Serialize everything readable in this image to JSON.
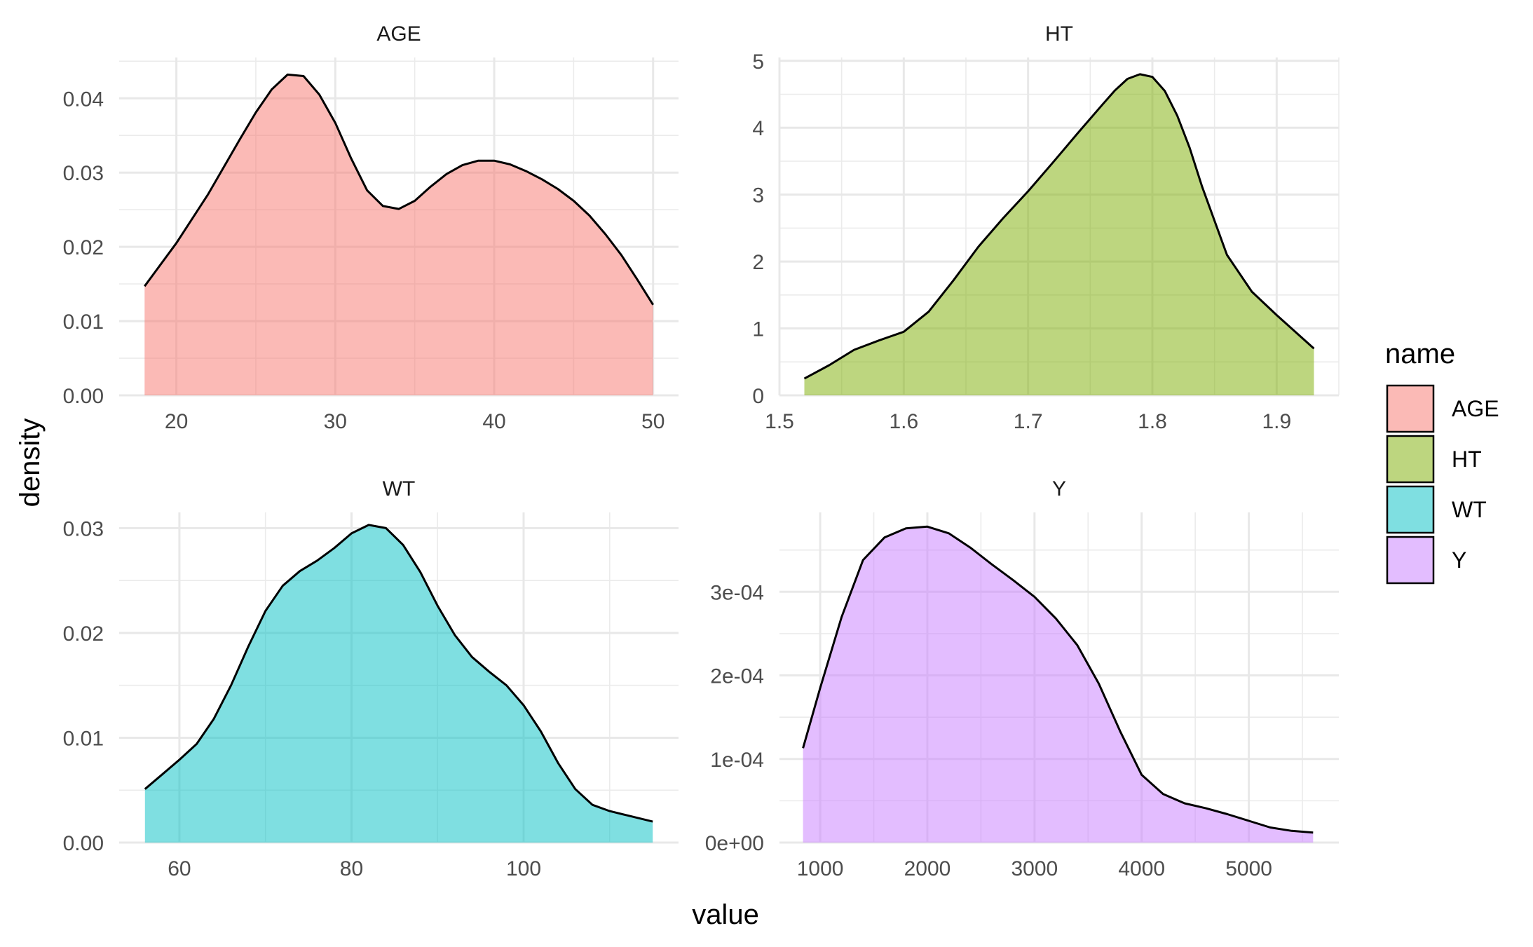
{
  "axes": {
    "xlabel": "value",
    "ylabel": "density"
  },
  "legend": {
    "title": "name",
    "position": "right",
    "entries": [
      {
        "label": "AGE",
        "color": "#F8766D"
      },
      {
        "label": "HT",
        "color": "#7CAE00"
      },
      {
        "label": "WT",
        "color": "#00BFC4"
      },
      {
        "label": "Y",
        "color": "#C77CFF"
      }
    ]
  },
  "chart_data": [
    {
      "type": "area",
      "title": "AGE",
      "color": "#F8766D",
      "xlim": [
        16.4,
        51.6
      ],
      "ylim": [
        0,
        0.0455
      ],
      "xticks": [
        20,
        30,
        40,
        50
      ],
      "xtick_labels": [
        "20",
        "30",
        "40",
        "50"
      ],
      "yticks": [
        0,
        0.01,
        0.02,
        0.03,
        0.04
      ],
      "ytick_labels": [
        "0.00",
        "0.01",
        "0.02",
        "0.03",
        "0.04"
      ],
      "grid": true,
      "x": [
        18,
        20,
        22,
        24,
        25,
        26,
        27,
        28,
        29,
        30,
        31,
        32,
        33,
        34,
        35,
        36,
        37,
        38,
        39,
        40,
        41,
        42,
        43,
        44,
        45,
        46,
        47,
        48,
        49,
        50
      ],
      "y": [
        0.0147,
        0.0205,
        0.0271,
        0.0345,
        0.0381,
        0.0412,
        0.0432,
        0.043,
        0.0405,
        0.0367,
        0.0319,
        0.0276,
        0.0255,
        0.0251,
        0.0262,
        0.0281,
        0.0298,
        0.031,
        0.0316,
        0.0316,
        0.0311,
        0.0302,
        0.0291,
        0.0278,
        0.0262,
        0.0242,
        0.0217,
        0.0189,
        0.0156,
        0.0122
      ]
    },
    {
      "type": "area",
      "title": "HT",
      "color": "#7CAE00",
      "xlim": [
        1.5,
        1.95
      ],
      "ylim": [
        0,
        5.05
      ],
      "xticks": [
        1.5,
        1.6,
        1.7,
        1.8,
        1.9
      ],
      "xtick_labels": [
        "1.5",
        "1.6",
        "1.7",
        "1.8",
        "1.9"
      ],
      "yticks": [
        0,
        1,
        2,
        3,
        4,
        5
      ],
      "ytick_labels": [
        "0",
        "1",
        "2",
        "3",
        "4",
        "5"
      ],
      "grid": true,
      "x": [
        1.52,
        1.54,
        1.56,
        1.58,
        1.6,
        1.62,
        1.64,
        1.66,
        1.68,
        1.7,
        1.72,
        1.74,
        1.76,
        1.77,
        1.78,
        1.79,
        1.8,
        1.81,
        1.82,
        1.83,
        1.84,
        1.86,
        1.88,
        1.9,
        1.93
      ],
      "y": [
        0.25,
        0.45,
        0.68,
        0.82,
        0.95,
        1.25,
        1.72,
        2.22,
        2.65,
        3.05,
        3.48,
        3.92,
        4.35,
        4.56,
        4.73,
        4.8,
        4.76,
        4.55,
        4.18,
        3.7,
        3.12,
        2.1,
        1.55,
        1.2,
        0.7
      ]
    },
    {
      "type": "area",
      "title": "WT",
      "color": "#00BFC4",
      "xlim": [
        53.0,
        118.0
      ],
      "ylim": [
        0,
        0.0315
      ],
      "xticks": [
        60,
        80,
        100
      ],
      "xtick_labels": [
        "60",
        "80",
        "100"
      ],
      "yticks": [
        0,
        0.01,
        0.02,
        0.03
      ],
      "ytick_labels": [
        "0.00",
        "0.01",
        "0.02",
        "0.03"
      ],
      "grid": true,
      "x": [
        56,
        58,
        60,
        62,
        64,
        66,
        68,
        70,
        72,
        74,
        76,
        78,
        80,
        82,
        84,
        86,
        88,
        90,
        92,
        94,
        96,
        98,
        100,
        102,
        104,
        106,
        108,
        110,
        112,
        115
      ],
      "y": [
        0.0051,
        0.0065,
        0.0079,
        0.0094,
        0.0118,
        0.015,
        0.0187,
        0.0221,
        0.0245,
        0.0259,
        0.0269,
        0.0281,
        0.0295,
        0.0303,
        0.03,
        0.0284,
        0.0258,
        0.0226,
        0.0198,
        0.0177,
        0.0163,
        0.015,
        0.0131,
        0.0106,
        0.0076,
        0.0051,
        0.0036,
        0.003,
        0.0026,
        0.002
      ]
    },
    {
      "type": "area",
      "title": "Y",
      "color": "#C77CFF",
      "xlim": [
        620,
        5840
      ],
      "ylim": [
        0,
        0.000395
      ],
      "xticks": [
        1000,
        2000,
        3000,
        4000,
        5000
      ],
      "xtick_labels": [
        "1000",
        "2000",
        "3000",
        "4000",
        "5000"
      ],
      "yticks": [
        0,
        0.0001,
        0.0002,
        0.0003
      ],
      "ytick_labels": [
        "0e+00",
        "1e-04",
        "2e-04",
        "3e-04"
      ],
      "grid": true,
      "x": [
        840,
        1000,
        1200,
        1400,
        1600,
        1800,
        2000,
        2200,
        2400,
        2600,
        2800,
        3000,
        3200,
        3400,
        3600,
        3800,
        4000,
        4200,
        4400,
        4600,
        4800,
        5000,
        5200,
        5400,
        5600
      ],
      "y": [
        0.000113,
        0.000185,
        0.00027,
        0.000338,
        0.000365,
        0.000376,
        0.000378,
        0.00037,
        0.000353,
        0.000333,
        0.000314,
        0.000294,
        0.000268,
        0.000236,
        0.00019,
        0.000133,
        8.1e-05,
        5.8e-05,
        4.7e-05,
        4.1e-05,
        3.4e-05,
        2.6e-05,
        1.8e-05,
        1.4e-05,
        1.2e-05
      ]
    }
  ]
}
